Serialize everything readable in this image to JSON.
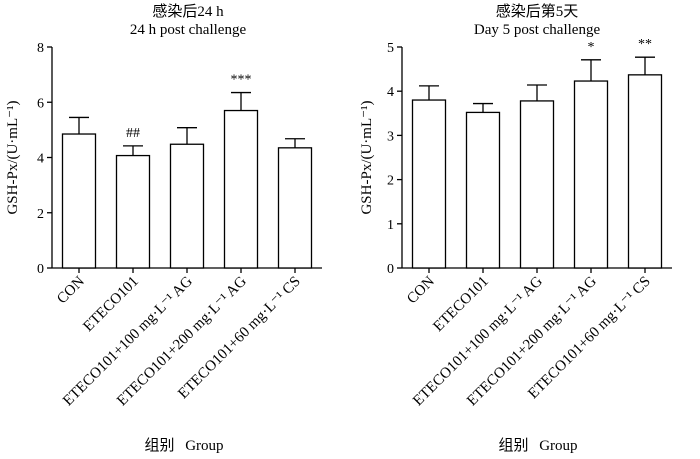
{
  "chart_data": [
    {
      "type": "bar",
      "title": "感染后24 h",
      "subtitle": "24 h post challenge",
      "xlabel": "组别 Group",
      "ylabel": "GSH-Px/(U·mL⁻¹)",
      "categories": [
        "CON",
        "ETECO101",
        "ETECO101+100 mg·L⁻¹ AG",
        "ETECO101+200 mg·L⁻¹ AG",
        "ETECO101+60 mg·L⁻¹ CS"
      ],
      "values": [
        4.85,
        4.07,
        4.48,
        5.7,
        4.35
      ],
      "errors": [
        0.6,
        0.35,
        0.6,
        0.65,
        0.33
      ],
      "annotations": [
        null,
        "##",
        null,
        "***",
        null
      ],
      "ylim": [
        0,
        8
      ],
      "yticks": [
        0,
        2,
        4,
        6,
        8
      ],
      "grid": false
    },
    {
      "type": "bar",
      "title": "感染后第5天",
      "subtitle": "Day 5 post challenge",
      "xlabel": "组别 Group",
      "ylabel": "GSH-Px/(U·mL⁻¹)",
      "categories": [
        "CON",
        "ETECO101",
        "ETECO101+100 mg·L⁻¹ AG",
        "ETECO101+200 mg·L⁻¹ AG",
        "ETECO101+60 mg·L⁻¹ CS"
      ],
      "values": [
        3.8,
        3.52,
        3.78,
        4.23,
        4.37
      ],
      "errors": [
        0.32,
        0.2,
        0.36,
        0.48,
        0.4
      ],
      "annotations": [
        null,
        null,
        null,
        "*",
        "**"
      ],
      "ylim": [
        0,
        5
      ],
      "yticks": [
        0,
        1,
        2,
        3,
        4,
        5
      ],
      "grid": false
    }
  ],
  "colors": {
    "bar_fill": "#ffffff",
    "bar_stroke": "#000000"
  }
}
